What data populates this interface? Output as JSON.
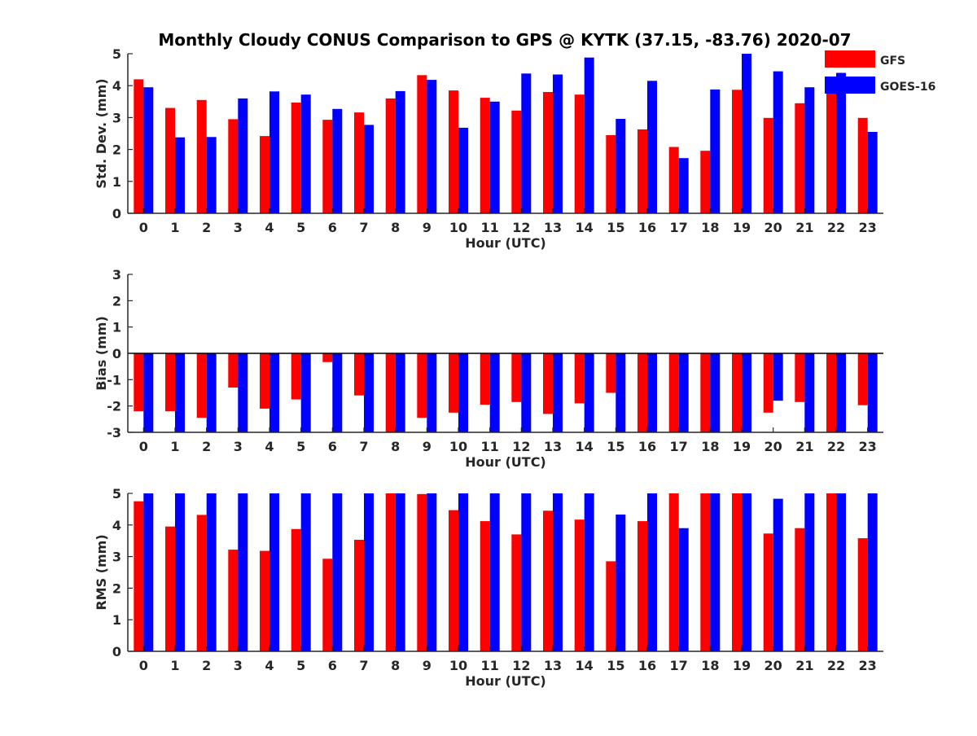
{
  "figure": {
    "title": "Monthly Cloudy CONUS Comparison to GPS @ KYTK (37.15, -83.76) 2020-07"
  },
  "legend": {
    "items": [
      {
        "label": "GFS",
        "color": "#ff0000"
      },
      {
        "label": "GOES-16",
        "color": "#0000ff"
      }
    ]
  },
  "chart_data": [
    {
      "type": "bar",
      "ylabel": "Std. Dev. (mm)",
      "xlabel": "Hour (UTC)",
      "ylim": [
        0,
        5
      ],
      "yticks": [
        0,
        1,
        2,
        3,
        4,
        5
      ],
      "categories": [
        "0",
        "1",
        "2",
        "3",
        "4",
        "5",
        "6",
        "7",
        "8",
        "9",
        "10",
        "11",
        "12",
        "13",
        "14",
        "15",
        "16",
        "17",
        "18",
        "19",
        "20",
        "21",
        "22",
        "23"
      ],
      "series": [
        {
          "name": "GFS",
          "color": "#ff0000",
          "values": [
            4.2,
            3.3,
            3.55,
            2.95,
            2.42,
            3.47,
            2.93,
            3.16,
            3.6,
            4.33,
            3.85,
            3.62,
            3.22,
            3.8,
            3.72,
            2.45,
            2.63,
            2.08,
            1.96,
            3.87,
            2.99,
            3.45,
            4.28,
            2.99
          ]
        },
        {
          "name": "GOES-16",
          "color": "#0000ff",
          "values": [
            3.95,
            2.38,
            2.39,
            3.6,
            3.82,
            3.72,
            3.27,
            2.77,
            3.83,
            4.18,
            2.68,
            3.5,
            4.38,
            4.35,
            4.88,
            2.96,
            4.15,
            1.73,
            3.88,
            5.0,
            4.45,
            3.95,
            4.4,
            2.55
          ]
        }
      ]
    },
    {
      "type": "bar",
      "ylabel": "Bias (mm)",
      "xlabel": "Hour (UTC)",
      "ylim": [
        -3,
        3
      ],
      "yticks": [
        -3,
        -2,
        -1,
        0,
        1,
        2,
        3
      ],
      "categories": [
        "0",
        "1",
        "2",
        "3",
        "4",
        "5",
        "6",
        "7",
        "8",
        "9",
        "10",
        "11",
        "12",
        "13",
        "14",
        "15",
        "16",
        "17",
        "18",
        "19",
        "20",
        "21",
        "22",
        "23"
      ],
      "series": [
        {
          "name": "GFS",
          "color": "#ff0000",
          "values": [
            -2.2,
            -2.2,
            -2.45,
            -1.3,
            -2.1,
            -1.75,
            -0.33,
            -1.6,
            -3.0,
            -2.45,
            -2.25,
            -1.95,
            -1.85,
            -2.3,
            -1.9,
            -1.5,
            -3.0,
            -3.0,
            -3.0,
            -3.0,
            -2.25,
            -1.85,
            -3.0,
            -1.97
          ]
        },
        {
          "name": "GOES-16",
          "color": "#0000ff",
          "values": [
            -3.0,
            -3.0,
            -3.0,
            -3.0,
            -3.0,
            -3.0,
            -3.0,
            -3.0,
            -3.0,
            -3.0,
            -3.0,
            -3.0,
            -3.0,
            -3.0,
            -3.0,
            -3.0,
            -3.0,
            -3.0,
            -3.0,
            -3.0,
            -1.8,
            -3.0,
            -3.0,
            -3.0
          ]
        }
      ]
    },
    {
      "type": "bar",
      "ylabel": "RMS (mm)",
      "xlabel": "Hour (UTC)",
      "ylim": [
        0,
        5
      ],
      "yticks": [
        0,
        1,
        2,
        3,
        4,
        5
      ],
      "categories": [
        "0",
        "1",
        "2",
        "3",
        "4",
        "5",
        "6",
        "7",
        "8",
        "9",
        "10",
        "11",
        "12",
        "13",
        "14",
        "15",
        "16",
        "17",
        "18",
        "19",
        "20",
        "21",
        "22",
        "23"
      ],
      "series": [
        {
          "name": "GFS",
          "color": "#ff0000",
          "values": [
            4.75,
            3.95,
            4.32,
            3.22,
            3.18,
            3.87,
            2.93,
            3.53,
            5.0,
            4.98,
            4.47,
            4.12,
            3.7,
            4.45,
            4.17,
            2.85,
            4.12,
            5.0,
            5.0,
            5.0,
            3.73,
            3.9,
            5.0,
            3.58
          ]
        },
        {
          "name": "GOES-16",
          "color": "#0000ff",
          "values": [
            5.0,
            5.0,
            5.0,
            5.0,
            5.0,
            5.0,
            5.0,
            5.0,
            5.0,
            5.0,
            5.0,
            5.0,
            5.0,
            5.0,
            5.0,
            4.33,
            5.0,
            3.9,
            5.0,
            5.0,
            4.83,
            5.0,
            5.0,
            5.0
          ]
        }
      ]
    }
  ]
}
